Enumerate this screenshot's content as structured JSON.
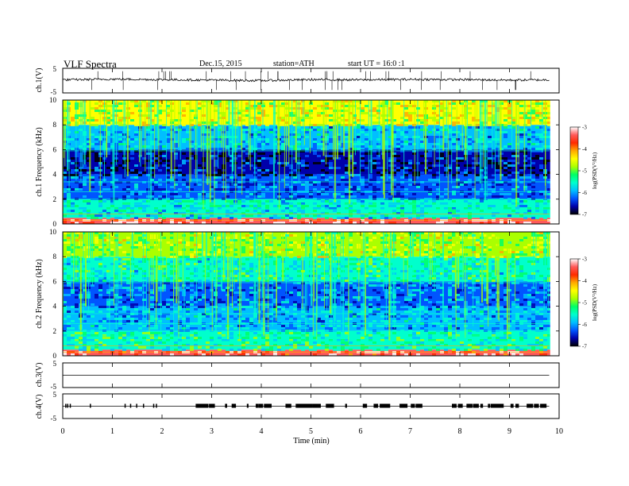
{
  "header": {
    "title": "VLF Spectra",
    "date": "Dec.15, 2015",
    "station": "station=ATH",
    "start": "start UT = 16:0 :1"
  },
  "colors": {
    "colormap": [
      "#ffffff",
      "#ff5a5a",
      "#ff2a00",
      "#ffaa00",
      "#ffff00",
      "#aaff00",
      "#00ff66",
      "#00ffcc",
      "#00bfff",
      "#0055ff",
      "#0000aa",
      "#000000"
    ],
    "trace": "#000000"
  },
  "chart_data": [
    {
      "type": "line",
      "panel": "ch1-waveform",
      "ylabel": "ch.1(V)",
      "ylim": [
        -5,
        5
      ],
      "yticks": [
        "5",
        "-5"
      ],
      "xlim": [
        0,
        10
      ],
      "series": [
        {
          "x": [
            0,
            1,
            2,
            3,
            4,
            5,
            6,
            7,
            8,
            9,
            9.8
          ],
          "values": [
            0.3,
            0.6,
            0.4,
            0.2,
            0.0,
            0.4,
            0.3,
            0.5,
            0.4,
            0.2,
            0.3
          ]
        }
      ]
    },
    {
      "type": "heatmap",
      "panel": "ch1-spectrogram",
      "ylabel": "ch.1 Frequency (kHz)",
      "ylim": [
        0,
        10
      ],
      "yticks": [
        "0",
        "2",
        "4",
        "6",
        "8",
        "10"
      ],
      "xlim": [
        0,
        10
      ],
      "colorbar": {
        "label": "log(PSD(V²/Hz)",
        "range": [
          -7,
          -3
        ],
        "ticks": [
          "-3",
          "-4",
          "-5",
          "-6",
          "-7"
        ]
      },
      "band_log_psd": [
        {
          "freq_khz": [
            0,
            0.5
          ],
          "value": -3.3
        },
        {
          "freq_khz": [
            0.5,
            2.0
          ],
          "value": -5.6
        },
        {
          "freq_khz": [
            2.0,
            4.0
          ],
          "value": -6.2
        },
        {
          "freq_khz": [
            4.0,
            6.0
          ],
          "value": -6.6
        },
        {
          "freq_khz": [
            6.0,
            8.0
          ],
          "value": -5.9
        },
        {
          "freq_khz": [
            8.0,
            10.0
          ],
          "value": -4.6
        }
      ]
    },
    {
      "type": "heatmap",
      "panel": "ch2-spectrogram",
      "ylabel": "ch.2 Frequency (kHz)",
      "ylim": [
        0,
        10
      ],
      "yticks": [
        "0",
        "2",
        "4",
        "6",
        "8",
        "10"
      ],
      "xlim": [
        0,
        10
      ],
      "colorbar": {
        "label": "log(PSD(V²/Hz)",
        "range": [
          -7,
          -3
        ],
        "ticks": [
          "-3",
          "-4",
          "-5",
          "-6",
          "-7"
        ]
      },
      "band_log_psd": [
        {
          "freq_khz": [
            0,
            0.5
          ],
          "value": -3.4
        },
        {
          "freq_khz": [
            0.5,
            2.0
          ],
          "value": -5.4
        },
        {
          "freq_khz": [
            2.0,
            4.0
          ],
          "value": -5.9
        },
        {
          "freq_khz": [
            4.0,
            6.0
          ],
          "value": -6.1
        },
        {
          "freq_khz": [
            6.0,
            8.0
          ],
          "value": -5.5
        },
        {
          "freq_khz": [
            8.0,
            10.0
          ],
          "value": -4.8
        }
      ]
    },
    {
      "type": "line",
      "panel": "ch3-waveform",
      "ylabel": "ch.3(V)",
      "ylim": [
        -5,
        5
      ],
      "yticks": [
        "5",
        "-5"
      ],
      "xlim": [
        0,
        10
      ],
      "series": [
        {
          "x": [
            0,
            9.8
          ],
          "values": [
            0,
            0
          ]
        }
      ]
    },
    {
      "type": "line",
      "panel": "ch4-waveform",
      "ylabel": "ch.4(V)",
      "ylim": [
        -5,
        5
      ],
      "yticks": [
        "5",
        "-5"
      ],
      "xlim": [
        0,
        10
      ],
      "xlabel": "Time (min)",
      "xticks": [
        "0",
        "1",
        "2",
        "3",
        "4",
        "5",
        "6",
        "7",
        "8",
        "9",
        "10"
      ],
      "series": [
        {
          "x": [
            0,
            9.8
          ],
          "values": [
            0,
            0
          ]
        }
      ]
    }
  ]
}
